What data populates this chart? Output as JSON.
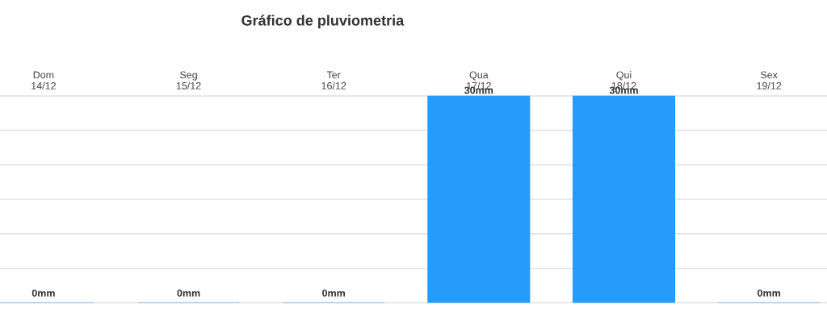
{
  "chart_data": {
    "type": "bar",
    "title": "Gráfico de pluviometria",
    "categories": [
      "Dom\n14/12",
      "Seg\n15/12",
      "Ter\n16/12",
      "Qua\n17/12",
      "Qui\n18/12",
      "Sex\n19/12"
    ],
    "values": [
      0,
      0,
      0,
      30,
      30,
      0
    ],
    "value_labels": [
      "0mm",
      "0mm",
      "0mm",
      "30mm",
      "30mm",
      "0mm"
    ],
    "color": "#259cfc",
    "ylim": [
      0,
      30
    ],
    "yticks": [
      {
        "value": 0,
        "label": null
      },
      {
        "value": 5,
        "label": null
      },
      {
        "value": 10,
        "label": null
      },
      {
        "value": 15,
        "label": null
      },
      {
        "value": 20,
        "label": null
      },
      {
        "value": 25,
        "label": null
      },
      {
        "value": 30,
        "label": null
      }
    ],
    "grid": "y",
    "tick_labels": "x"
  }
}
